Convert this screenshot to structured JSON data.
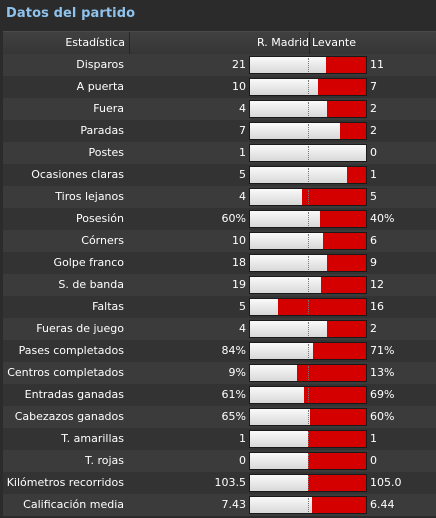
{
  "panel": {
    "title": "Datos del partido",
    "header": {
      "stat": "Estadística",
      "home": "R. Madrid",
      "away": "Levante"
    }
  },
  "colors": {
    "title": "#8fc3ee",
    "home_bar": "#f0f0f0",
    "away_bar": "#d40000",
    "background": "#2b2b2b"
  },
  "stats": [
    {
      "label": "Disparos",
      "home": "21",
      "away": "11",
      "home_share": 0.656
    },
    {
      "label": "A puerta",
      "home": "10",
      "away": "7",
      "home_share": 0.588
    },
    {
      "label": "Fuera",
      "home": "4",
      "away": "2",
      "home_share": 0.667
    },
    {
      "label": "Paradas",
      "home": "7",
      "away": "2",
      "home_share": 0.778
    },
    {
      "label": "Postes",
      "home": "1",
      "away": "0",
      "home_share": 1.0
    },
    {
      "label": "Ocasiones claras",
      "home": "5",
      "away": "1",
      "home_share": 0.833
    },
    {
      "label": "Tiros lejanos",
      "home": "4",
      "away": "5",
      "home_share": 0.444
    },
    {
      "label": "Posesión",
      "home": "60%",
      "away": "40%",
      "home_share": 0.6
    },
    {
      "label": "Córners",
      "home": "10",
      "away": "6",
      "home_share": 0.625
    },
    {
      "label": "Golpe franco",
      "home": "18",
      "away": "9",
      "home_share": 0.667
    },
    {
      "label": "S. de banda",
      "home": "19",
      "away": "12",
      "home_share": 0.613
    },
    {
      "label": "Faltas",
      "home": "5",
      "away": "16",
      "home_share": 0.238
    },
    {
      "label": "Fueras de juego",
      "home": "4",
      "away": "2",
      "home_share": 0.667
    },
    {
      "label": "Pases completados",
      "home": "84%",
      "away": "71%",
      "home_share": 0.542
    },
    {
      "label": "Centros completados",
      "home": "9%",
      "away": "13%",
      "home_share": 0.409
    },
    {
      "label": "Entradas ganadas",
      "home": "61%",
      "away": "69%",
      "home_share": 0.469
    },
    {
      "label": "Cabezazos ganados",
      "home": "65%",
      "away": "60%",
      "home_share": 0.52
    },
    {
      "label": "T. amarillas",
      "home": "1",
      "away": "1",
      "home_share": 0.5
    },
    {
      "label": "T. rojas",
      "home": "0",
      "away": "0",
      "home_share": 0.5
    },
    {
      "label": "Kilómetros recorridos",
      "home": "103.5",
      "away": "105.0",
      "home_share": 0.496
    },
    {
      "label": "Calificación media",
      "home": "7.43",
      "away": "6.44",
      "home_share": 0.536
    }
  ]
}
